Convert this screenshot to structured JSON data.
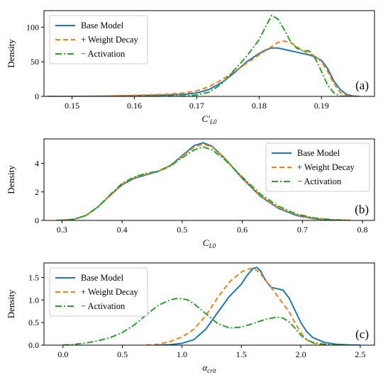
{
  "chart_data": [
    {
      "type": "line",
      "panel_label": "(a)",
      "xlabel": "C′L0",
      "xlabel_main": "C′",
      "xlabel_sub": "L0",
      "ylabel": "Density",
      "xlim": [
        0.1455,
        0.1985
      ],
      "ylim": [
        0,
        124
      ],
      "xticks": [
        0.15,
        0.16,
        0.17,
        0.18,
        0.19
      ],
      "xtick_labels": [
        "0.15",
        "0.16",
        "0.17",
        "0.18",
        "0.19"
      ],
      "yticks": [
        0,
        50,
        100
      ],
      "ytick_labels": [
        "0",
        "50",
        "100"
      ],
      "legend_position": "top-left",
      "series": [
        {
          "name": "Base Model",
          "color": "#1f77b4",
          "style": "solid",
          "x": [
            0.146,
            0.15,
            0.155,
            0.16,
            0.165,
            0.168,
            0.17,
            0.172,
            0.174,
            0.176,
            0.178,
            0.18,
            0.181,
            0.182,
            0.183,
            0.184,
            0.185,
            0.186,
            0.187,
            0.188,
            0.189,
            0.19,
            0.191,
            0.192,
            0.193,
            0.194,
            0.195,
            0.196
          ],
          "y": [
            0,
            0,
            0.3,
            1,
            2,
            3,
            5,
            10,
            20,
            34,
            50,
            62,
            67,
            70,
            70,
            68,
            66,
            64,
            62,
            60,
            57,
            52,
            40,
            22,
            10,
            3,
            0.5,
            0
          ]
        },
        {
          "name": "+ Weight Decay",
          "color": "#ff7f0e",
          "style": "dashed",
          "x": [
            0.146,
            0.15,
            0.155,
            0.16,
            0.165,
            0.168,
            0.17,
            0.172,
            0.174,
            0.176,
            0.178,
            0.18,
            0.181,
            0.182,
            0.183,
            0.184,
            0.185,
            0.186,
            0.187,
            0.188,
            0.189,
            0.19,
            0.191,
            0.192,
            0.193,
            0.194,
            0.195
          ],
          "y": [
            0,
            0,
            0.3,
            1.5,
            3,
            5,
            8,
            14,
            24,
            36,
            48,
            60,
            66,
            72,
            78,
            80,
            78,
            72,
            66,
            62,
            58,
            50,
            36,
            18,
            6,
            1,
            0
          ]
        },
        {
          "name": "− Activation",
          "color": "#2ca02c",
          "style": "dashdot",
          "x": [
            0.146,
            0.16,
            0.168,
            0.17,
            0.172,
            0.174,
            0.176,
            0.178,
            0.18,
            0.181,
            0.182,
            0.183,
            0.184,
            0.185,
            0.186,
            0.187,
            0.188,
            0.189,
            0.19,
            0.191,
            0.192,
            0.193,
            0.194
          ],
          "y": [
            0,
            0,
            0.5,
            2,
            6,
            18,
            38,
            58,
            82,
            100,
            117,
            112,
            97,
            80,
            70,
            66,
            66,
            55,
            36,
            16,
            5,
            0.5,
            0
          ]
        }
      ]
    },
    {
      "type": "line",
      "panel_label": "(b)",
      "xlabel": "CL0",
      "xlabel_main": "C",
      "xlabel_sub": "L0",
      "ylabel": "Density",
      "xlim": [
        0.27,
        0.82
      ],
      "ylim": [
        0,
        5.72
      ],
      "xticks": [
        0.3,
        0.4,
        0.5,
        0.6,
        0.7,
        0.8
      ],
      "xtick_labels": [
        "0.3",
        "0.4",
        "0.5",
        "0.6",
        "0.7",
        "0.8"
      ],
      "yticks": [
        0,
        2,
        4
      ],
      "ytick_labels": [
        "0",
        "2",
        "4"
      ],
      "legend_position": "top-right",
      "series": [
        {
          "name": "Base Model",
          "color": "#1f77b4",
          "style": "solid",
          "x": [
            0.29,
            0.3,
            0.32,
            0.34,
            0.36,
            0.38,
            0.4,
            0.42,
            0.44,
            0.46,
            0.48,
            0.5,
            0.52,
            0.535,
            0.55,
            0.57,
            0.6,
            0.63,
            0.66,
            0.69,
            0.72,
            0.75,
            0.78
          ],
          "y": [
            0,
            0.01,
            0.08,
            0.35,
            0.95,
            1.75,
            2.5,
            2.95,
            3.2,
            3.45,
            3.85,
            4.55,
            5.25,
            5.45,
            5.2,
            4.4,
            2.95,
            1.7,
            0.85,
            0.35,
            0.12,
            0.03,
            0
          ]
        },
        {
          "name": "+ Weight Decay",
          "color": "#ff7f0e",
          "style": "dashed",
          "x": [
            0.29,
            0.3,
            0.32,
            0.34,
            0.36,
            0.38,
            0.4,
            0.42,
            0.44,
            0.46,
            0.48,
            0.5,
            0.52,
            0.535,
            0.55,
            0.57,
            0.6,
            0.63,
            0.66,
            0.69,
            0.72,
            0.75,
            0.78
          ],
          "y": [
            0,
            0.01,
            0.08,
            0.35,
            0.95,
            1.75,
            2.55,
            3.0,
            3.25,
            3.45,
            3.85,
            4.5,
            5.15,
            5.35,
            5.15,
            4.4,
            3.0,
            1.75,
            0.9,
            0.4,
            0.14,
            0.04,
            0
          ]
        },
        {
          "name": "− Activation",
          "color": "#2ca02c",
          "style": "dashdot",
          "x": [
            0.29,
            0.3,
            0.32,
            0.34,
            0.36,
            0.38,
            0.4,
            0.42,
            0.44,
            0.46,
            0.48,
            0.5,
            0.52,
            0.535,
            0.55,
            0.57,
            0.6,
            0.63,
            0.66,
            0.69,
            0.72,
            0.75,
            0.78
          ],
          "y": [
            0,
            0.01,
            0.08,
            0.35,
            0.95,
            1.8,
            2.6,
            3.05,
            3.3,
            3.45,
            3.8,
            4.4,
            4.95,
            5.15,
            4.95,
            4.3,
            3.05,
            1.85,
            1.0,
            0.45,
            0.17,
            0.05,
            0
          ]
        }
      ]
    },
    {
      "type": "line",
      "panel_label": "(c)",
      "xlabel": "αcrit",
      "xlabel_main": "α",
      "xlabel_sub": "crit",
      "ylabel": "Density",
      "xlim": [
        -0.16,
        2.62
      ],
      "ylim": [
        0,
        1.82
      ],
      "xticks": [
        0.0,
        0.5,
        1.0,
        1.5,
        2.0,
        2.5
      ],
      "xtick_labels": [
        "0.0",
        "0.5",
        "1.0",
        "1.5",
        "2.0",
        "2.5"
      ],
      "yticks": [
        0,
        0.5,
        1.0,
        1.5
      ],
      "ytick_labels": [
        "0.0",
        "0.5",
        "1.0",
        "1.5"
      ],
      "legend_position": "top-left",
      "series": [
        {
          "name": "Base Model",
          "color": "#1f77b4",
          "style": "solid",
          "x": [
            0.8,
            0.9,
            1.0,
            1.1,
            1.2,
            1.3,
            1.4,
            1.5,
            1.55,
            1.6,
            1.63,
            1.66,
            1.7,
            1.75,
            1.8,
            1.85,
            1.9,
            1.95,
            2.0,
            2.05,
            2.1,
            2.2,
            2.3,
            2.4,
            2.5
          ],
          "y": [
            0,
            0.01,
            0.04,
            0.12,
            0.35,
            0.72,
            1.08,
            1.35,
            1.55,
            1.7,
            1.72,
            1.65,
            1.45,
            1.28,
            1.25,
            1.22,
            1.05,
            0.78,
            0.5,
            0.3,
            0.17,
            0.06,
            0.02,
            0.005,
            0
          ]
        },
        {
          "name": "+ Weight Decay",
          "color": "#ff7f0e",
          "style": "dashed",
          "x": [
            0.7,
            0.8,
            0.9,
            1.0,
            1.1,
            1.2,
            1.3,
            1.4,
            1.5,
            1.55,
            1.6,
            1.65,
            1.7,
            1.75,
            1.8,
            1.85,
            1.9,
            1.95,
            2.0,
            2.05,
            2.1,
            2.15,
            2.2
          ],
          "y": [
            0,
            0.02,
            0.08,
            0.18,
            0.35,
            0.65,
            1.05,
            1.4,
            1.62,
            1.68,
            1.7,
            1.62,
            1.45,
            1.28,
            1.1,
            0.92,
            0.75,
            0.5,
            0.28,
            0.12,
            0.05,
            0.01,
            0
          ]
        },
        {
          "name": "− Activation",
          "color": "#2ca02c",
          "style": "dashdot",
          "x": [
            0.0,
            0.1,
            0.2,
            0.3,
            0.4,
            0.5,
            0.6,
            0.7,
            0.8,
            0.9,
            0.95,
            1.0,
            1.05,
            1.1,
            1.2,
            1.3,
            1.4,
            1.5,
            1.6,
            1.7,
            1.8,
            1.85,
            1.9,
            1.95,
            2.0,
            2.05,
            2.1,
            2.2,
            2.3,
            2.4
          ],
          "y": [
            0,
            0.02,
            0.05,
            0.1,
            0.17,
            0.28,
            0.45,
            0.67,
            0.88,
            1.0,
            1.03,
            1.03,
            1.0,
            0.92,
            0.7,
            0.48,
            0.38,
            0.4,
            0.48,
            0.57,
            0.62,
            0.6,
            0.52,
            0.38,
            0.22,
            0.12,
            0.06,
            0.02,
            0.005,
            0
          ]
        }
      ]
    }
  ]
}
